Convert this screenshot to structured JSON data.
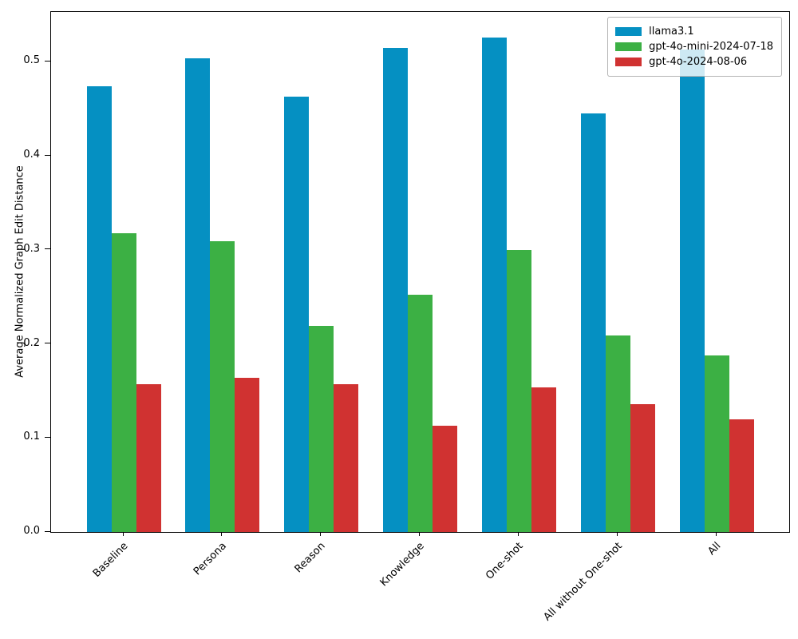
{
  "chart_data": {
    "type": "bar",
    "title": "",
    "xlabel": "",
    "ylabel": "Average Normalized Graph Edit Distance",
    "categories": [
      "Baseline",
      "Persona",
      "Reason",
      "Knowledge",
      "One-shot",
      "All without One-shot",
      "All"
    ],
    "series": [
      {
        "name": "llama3.1",
        "color": "#0590c2",
        "values": [
          0.474,
          0.504,
          0.463,
          0.515,
          0.526,
          0.445,
          0.513
        ]
      },
      {
        "name": "gpt-4o-mini-2024-07-18",
        "color": "#3cb044",
        "values": [
          0.318,
          0.309,
          0.219,
          0.252,
          0.3,
          0.209,
          0.188
        ]
      },
      {
        "name": "gpt-4o-2024-08-06",
        "color": "#d03231",
        "values": [
          0.157,
          0.164,
          0.157,
          0.113,
          0.154,
          0.136,
          0.12
        ]
      }
    ],
    "ylim": [
      0,
      0.553
    ],
    "yticks": [
      0.0,
      0.1,
      0.2,
      0.3,
      0.4,
      0.5
    ],
    "ytick_labels": [
      "0.0",
      "0.1",
      "0.2",
      "0.3",
      "0.4",
      "0.5"
    ],
    "legend_position": "upper right",
    "grid": false,
    "xtick_rotation": 45
  }
}
